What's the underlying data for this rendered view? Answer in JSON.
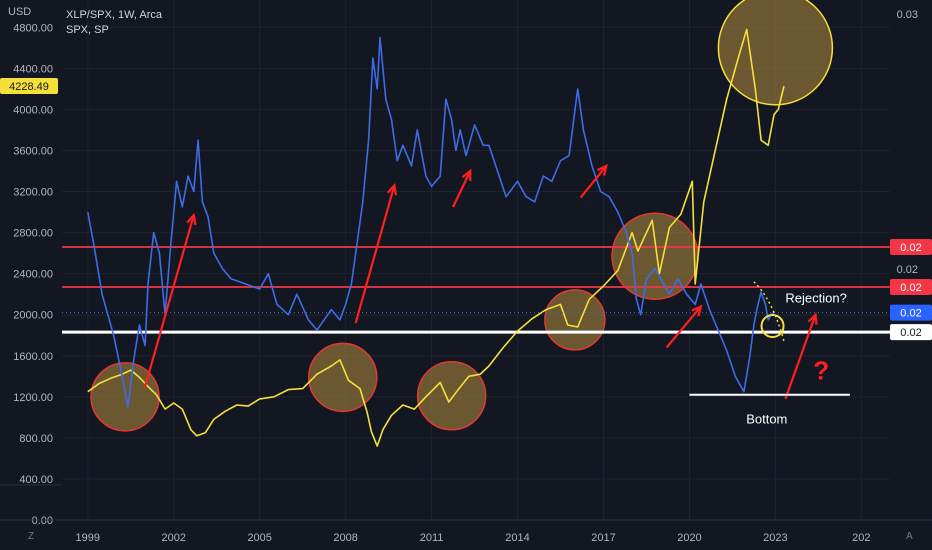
{
  "header": {
    "symbol_line": "XLP/SPX, 1W, Arca",
    "compare_line": "SPX, SP",
    "currency": "USD"
  },
  "chart_data": {
    "type": "line",
    "x_ticks": [
      "1999",
      "2002",
      "2005",
      "2008",
      "2011",
      "2014",
      "2017",
      "2020",
      "2023",
      "202"
    ],
    "xlim": [
      1998.1,
      2027.0
    ],
    "left_axis": {
      "ticks": [
        "0.00",
        "400.00",
        "800.00",
        "1200.00",
        "1600.00",
        "2000.00",
        "2400.00",
        "2800.00",
        "3200.00",
        "3600.00",
        "4000.00",
        "4400.00",
        "4800.00"
      ],
      "ylim": [
        0,
        5066
      ]
    },
    "right_axis": {
      "ticks": [
        "0.03",
        "0.02"
      ]
    },
    "current_price_label": "4228.49",
    "series": [
      {
        "name": "SPX, SP",
        "color": "#f5e03a",
        "points": [
          [
            1999.0,
            1250
          ],
          [
            1999.4,
            1330
          ],
          [
            1999.8,
            1380
          ],
          [
            2000.2,
            1420
          ],
          [
            2000.5,
            1460
          ],
          [
            2000.8,
            1390
          ],
          [
            2001.1,
            1300
          ],
          [
            2001.4,
            1220
          ],
          [
            2001.7,
            1080
          ],
          [
            2002.0,
            1140
          ],
          [
            2002.3,
            1080
          ],
          [
            2002.6,
            880
          ],
          [
            2002.8,
            820
          ],
          [
            2003.1,
            850
          ],
          [
            2003.4,
            980
          ],
          [
            2003.8,
            1060
          ],
          [
            2004.2,
            1120
          ],
          [
            2004.6,
            1110
          ],
          [
            2005.0,
            1180
          ],
          [
            2005.5,
            1200
          ],
          [
            2006.0,
            1270
          ],
          [
            2006.5,
            1280
          ],
          [
            2007.0,
            1420
          ],
          [
            2007.5,
            1500
          ],
          [
            2007.8,
            1560
          ],
          [
            2008.1,
            1360
          ],
          [
            2008.5,
            1280
          ],
          [
            2008.75,
            1050
          ],
          [
            2008.9,
            860
          ],
          [
            2009.1,
            720
          ],
          [
            2009.3,
            880
          ],
          [
            2009.6,
            1020
          ],
          [
            2010.0,
            1120
          ],
          [
            2010.4,
            1080
          ],
          [
            2010.8,
            1200
          ],
          [
            2011.3,
            1340
          ],
          [
            2011.6,
            1150
          ],
          [
            2011.9,
            1260
          ],
          [
            2012.3,
            1400
          ],
          [
            2012.7,
            1420
          ],
          [
            2013.0,
            1500
          ],
          [
            2013.5,
            1680
          ],
          [
            2014.0,
            1840
          ],
          [
            2014.5,
            1960
          ],
          [
            2015.0,
            2050
          ],
          [
            2015.5,
            2100
          ],
          [
            2015.75,
            1900
          ],
          [
            2016.1,
            1880
          ],
          [
            2016.5,
            2150
          ],
          [
            2017.0,
            2280
          ],
          [
            2017.5,
            2430
          ],
          [
            2018.0,
            2800
          ],
          [
            2018.2,
            2620
          ],
          [
            2018.7,
            2920
          ],
          [
            2018.95,
            2400
          ],
          [
            2019.3,
            2850
          ],
          [
            2019.7,
            2980
          ],
          [
            2020.1,
            3300
          ],
          [
            2020.2,
            2300
          ],
          [
            2020.5,
            3100
          ],
          [
            2020.9,
            3600
          ],
          [
            2021.3,
            4100
          ],
          [
            2021.7,
            4500
          ],
          [
            2022.0,
            4780
          ],
          [
            2022.3,
            4200
          ],
          [
            2022.5,
            3700
          ],
          [
            2022.75,
            3650
          ],
          [
            2022.95,
            3950
          ],
          [
            2023.1,
            4000
          ],
          [
            2023.3,
            4228
          ]
        ]
      },
      {
        "name": "XLP/SPX, 1W, Arca",
        "color": "#3c6ce6",
        "points": [
          [
            1999.0,
            3000
          ],
          [
            1999.2,
            2700
          ],
          [
            1999.5,
            2200
          ],
          [
            1999.9,
            1800
          ],
          [
            2000.2,
            1400
          ],
          [
            2000.4,
            1100
          ],
          [
            2000.6,
            1550
          ],
          [
            2000.8,
            1900
          ],
          [
            2001.0,
            1700
          ],
          [
            2001.1,
            2300
          ],
          [
            2001.3,
            2800
          ],
          [
            2001.5,
            2600
          ],
          [
            2001.7,
            2000
          ],
          [
            2001.9,
            2700
          ],
          [
            2002.1,
            3300
          ],
          [
            2002.3,
            3050
          ],
          [
            2002.5,
            3350
          ],
          [
            2002.7,
            3200
          ],
          [
            2002.85,
            3700
          ],
          [
            2003.0,
            3100
          ],
          [
            2003.2,
            2950
          ],
          [
            2003.4,
            2600
          ],
          [
            2003.7,
            2450
          ],
          [
            2004.0,
            2350
          ],
          [
            2004.5,
            2300
          ],
          [
            2005.0,
            2250
          ],
          [
            2005.3,
            2400
          ],
          [
            2005.6,
            2100
          ],
          [
            2006.0,
            2000
          ],
          [
            2006.3,
            2200
          ],
          [
            2006.7,
            1950
          ],
          [
            2007.0,
            1850
          ],
          [
            2007.5,
            2050
          ],
          [
            2007.8,
            1950
          ],
          [
            2008.0,
            2100
          ],
          [
            2008.2,
            2300
          ],
          [
            2008.4,
            2700
          ],
          [
            2008.6,
            3100
          ],
          [
            2008.8,
            3700
          ],
          [
            2008.95,
            4500
          ],
          [
            2009.1,
            4200
          ],
          [
            2009.2,
            4700
          ],
          [
            2009.4,
            4100
          ],
          [
            2009.6,
            3900
          ],
          [
            2009.8,
            3500
          ],
          [
            2010.0,
            3650
          ],
          [
            2010.3,
            3450
          ],
          [
            2010.5,
            3800
          ],
          [
            2010.8,
            3350
          ],
          [
            2011.0,
            3250
          ],
          [
            2011.3,
            3350
          ],
          [
            2011.5,
            4100
          ],
          [
            2011.7,
            3900
          ],
          [
            2011.85,
            3600
          ],
          [
            2012.0,
            3800
          ],
          [
            2012.2,
            3550
          ],
          [
            2012.5,
            3850
          ],
          [
            2012.8,
            3650
          ],
          [
            2013.0,
            3650
          ],
          [
            2013.3,
            3400
          ],
          [
            2013.6,
            3150
          ],
          [
            2014.0,
            3300
          ],
          [
            2014.3,
            3150
          ],
          [
            2014.6,
            3100
          ],
          [
            2014.9,
            3350
          ],
          [
            2015.2,
            3300
          ],
          [
            2015.5,
            3500
          ],
          [
            2015.8,
            3550
          ],
          [
            2016.1,
            4200
          ],
          [
            2016.3,
            3800
          ],
          [
            2016.6,
            3450
          ],
          [
            2016.9,
            3200
          ],
          [
            2017.2,
            3150
          ],
          [
            2017.5,
            3000
          ],
          [
            2017.8,
            2800
          ],
          [
            2018.0,
            2600
          ],
          [
            2018.15,
            2150
          ],
          [
            2018.3,
            2000
          ],
          [
            2018.5,
            2350
          ],
          [
            2018.8,
            2450
          ],
          [
            2019.0,
            2350
          ],
          [
            2019.3,
            2200
          ],
          [
            2019.6,
            2350
          ],
          [
            2019.9,
            2200
          ],
          [
            2020.2,
            2100
          ],
          [
            2020.4,
            2300
          ],
          [
            2020.7,
            2050
          ],
          [
            2021.0,
            1850
          ],
          [
            2021.3,
            1650
          ],
          [
            2021.6,
            1400
          ],
          [
            2021.9,
            1250
          ],
          [
            2022.1,
            1580
          ],
          [
            2022.25,
            1900
          ],
          [
            2022.35,
            2050
          ],
          [
            2022.5,
            2220
          ],
          [
            2022.65,
            2100
          ],
          [
            2022.75,
            1950
          ],
          [
            2022.85,
            2000
          ],
          [
            2022.95,
            2020
          ]
        ]
      }
    ],
    "horizontal_levels": [
      {
        "value": 2660,
        "color": "#f23645",
        "price_label": "0.02"
      },
      {
        "value": 2270,
        "color": "#f23645",
        "price_label": "0.02"
      },
      {
        "value": 1830,
        "color": "#ffffff",
        "price_label": "0.02"
      }
    ],
    "xlp_price_label": "0.02",
    "annotations": [
      "Rejection?",
      "Bottom",
      "?"
    ]
  }
}
